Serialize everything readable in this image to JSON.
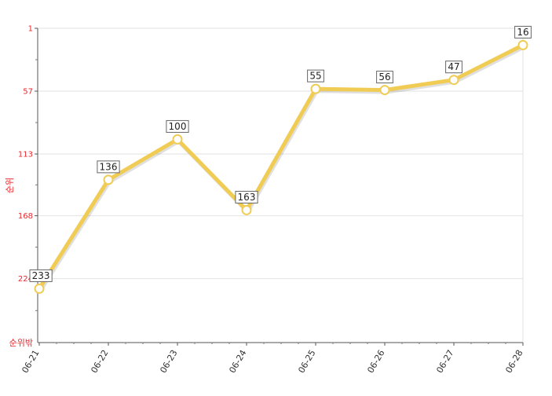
{
  "chart_data": {
    "type": "line",
    "title": "",
    "xlabel": "",
    "ylabel": "순위",
    "bottom_note": "순위밖",
    "y_inverted": true,
    "ylim": [
      1,
      281
    ],
    "ytick_labels": [
      "1",
      "57",
      "113",
      "168",
      "224"
    ],
    "ytick_values": [
      1,
      57,
      113,
      168,
      224
    ],
    "categories": [
      "06-21",
      "06-22",
      "06-23",
      "06-24",
      "06-25",
      "06-26",
      "06-27",
      "06-28"
    ],
    "series": [
      {
        "values": [
          233,
          136,
          100,
          163,
          55,
          56,
          47,
          16
        ]
      }
    ],
    "grid": true,
    "line_color": "#f0cc55",
    "axis_label_color": "#e8262c"
  }
}
